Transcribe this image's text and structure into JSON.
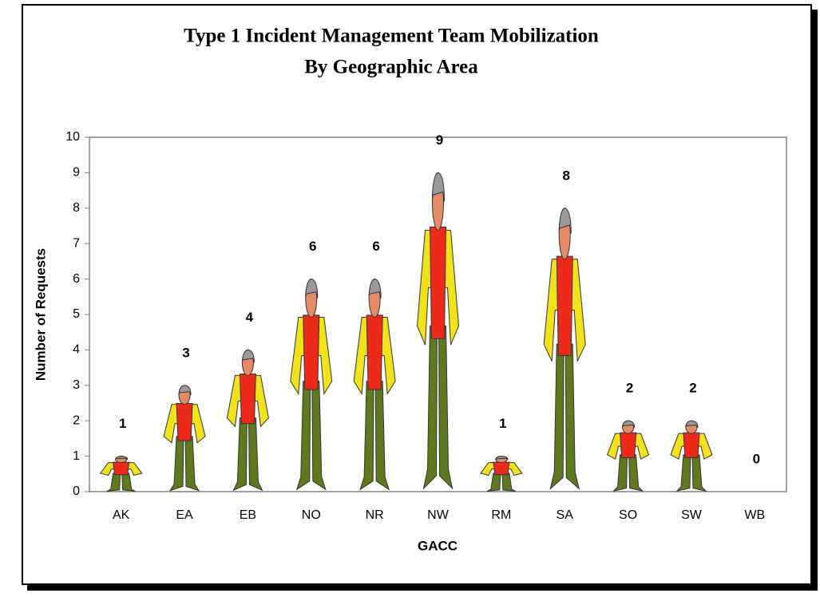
{
  "chart_data": {
    "type": "pictograph",
    "title": [
      "Type 1 Incident Management Team Mobilization",
      "By Geographic Area"
    ],
    "x_label": "GACC",
    "y_label": "Number of Requests",
    "categories": [
      "AK",
      "EA",
      "EB",
      "NO",
      "NR",
      "NW",
      "RM",
      "SA",
      "SO",
      "SW",
      "WB"
    ],
    "values": [
      1,
      3,
      4,
      6,
      6,
      9,
      1,
      8,
      2,
      2,
      0
    ],
    "ylim": [
      0,
      10
    ],
    "yticks": [
      0,
      1,
      2,
      3,
      4,
      5,
      6,
      7,
      8,
      9,
      10
    ],
    "grid": false,
    "shirt_color": "#f2e21c",
    "vest_color": "#ee2a1a",
    "pants_color": "#5e7a1c",
    "head_color": "#e38a66",
    "hair_color": "#9a9a9a"
  }
}
